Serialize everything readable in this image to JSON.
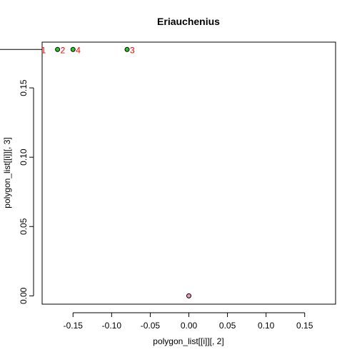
{
  "chart_data": {
    "type": "scatter",
    "title": "Eriauchenius",
    "xlabel": "polygon_list[[i]][, 2]",
    "ylabel": "polygon_list[[i]][, 3]",
    "xlim": [
      -0.19,
      0.19
    ],
    "ylim": [
      -0.006,
      0.183
    ],
    "x_ticks": [
      -0.15,
      -0.1,
      -0.05,
      0.0,
      0.05,
      0.1,
      0.15
    ],
    "x_tick_labels": [
      "-0.15",
      "-0.10",
      "-0.05",
      "0.00",
      "0.05",
      "0.10",
      "0.15"
    ],
    "y_ticks": [
      0.0,
      0.05,
      0.1,
      0.15
    ],
    "y_tick_labels": [
      "0.00",
      "0.05",
      "0.10",
      "0.15"
    ],
    "grid": false,
    "legend": "none",
    "points": [
      {
        "x": -0.17,
        "y": 0.1777,
        "label": "2",
        "color": "#22cc22"
      },
      {
        "x": -0.15,
        "y": 0.1777,
        "label": "4",
        "color": "#22cc22"
      },
      {
        "x": -0.08,
        "y": 0.1777,
        "label": "3",
        "color": "#22cc22"
      },
      {
        "x": 0.0,
        "y": 0.0,
        "label": "",
        "color": "#ee99bb"
      }
    ],
    "offplot_labels": [
      {
        "x": -0.19,
        "y": 0.1777,
        "label": "1"
      }
    ],
    "reference_line": {
      "y": 0.1777,
      "x_from": -0.25,
      "x_to": -0.19
    },
    "colors": {
      "point_label": "#ff0000",
      "point_outline": "#000000",
      "axis": "#000000"
    }
  }
}
